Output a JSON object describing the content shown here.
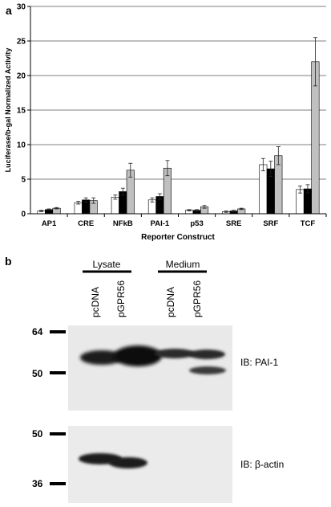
{
  "panel_a": {
    "label": "a",
    "chart_data": {
      "type": "bar",
      "title": "",
      "xlabel": "Reporter Construct",
      "ylabel": "Luciferase/b-gal Normalized Activity",
      "ylim": [
        0,
        30
      ],
      "yticks": [
        0,
        5,
        10,
        15,
        20,
        25,
        30
      ],
      "grid": true,
      "legend": "none",
      "categories": [
        "AP1",
        "CRE",
        "NFkB",
        "PAI-1",
        "p53",
        "SRE",
        "SRF",
        "TCF"
      ],
      "series": [
        {
          "color": "#ffffff",
          "values": [
            0.4,
            1.6,
            2.4,
            2.0,
            0.5,
            0.3,
            7.1,
            3.5
          ],
          "errors": [
            0.1,
            0.2,
            0.3,
            0.3,
            0.1,
            0.1,
            0.9,
            0.5
          ]
        },
        {
          "color": "#000000",
          "values": [
            0.6,
            2.0,
            3.2,
            2.5,
            0.5,
            0.4,
            6.5,
            3.6
          ],
          "errors": [
            0.1,
            0.3,
            0.5,
            0.4,
            0.1,
            0.1,
            1.1,
            0.6
          ]
        },
        {
          "color": "#c0c0c0",
          "values": [
            0.8,
            1.9,
            6.3,
            6.6,
            1.0,
            0.7,
            8.4,
            22.0
          ],
          "errors": [
            0.1,
            0.4,
            1.0,
            1.1,
            0.2,
            0.1,
            1.3,
            3.5
          ]
        }
      ]
    }
  },
  "panel_b": {
    "label": "b",
    "group_labels": [
      "Lysate",
      "Medium"
    ],
    "lane_labels": [
      "pcDNA",
      "pGPR56",
      "pcDNA",
      "pGPR56"
    ],
    "blot1": {
      "markers": [
        "64",
        "50"
      ],
      "ib_label": "IB:  PAI-1"
    },
    "blot2": {
      "markers": [
        "50",
        "36"
      ],
      "ib_label": "IB: β-actin"
    }
  }
}
